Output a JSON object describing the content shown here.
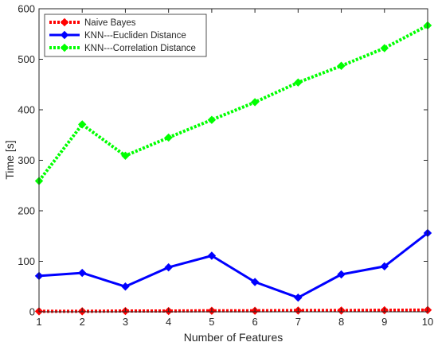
{
  "chart_data": {
    "type": "line",
    "title": "",
    "xlabel": "Number of Features",
    "ylabel": "Time [s]",
    "x": [
      1,
      2,
      3,
      4,
      5,
      6,
      7,
      8,
      9,
      10
    ],
    "xlim": [
      1,
      10
    ],
    "ylim": [
      0,
      600
    ],
    "xticks": [
      1,
      2,
      3,
      4,
      5,
      6,
      7,
      8,
      9,
      10
    ],
    "yticks": [
      0,
      100,
      200,
      300,
      400,
      500,
      600
    ],
    "grid": false,
    "legend_position": "top-left",
    "series": [
      {
        "name": "Naive Bayes",
        "color": "#ff0000",
        "line_style": "dotted",
        "marker": "diamond",
        "values": [
          1,
          1,
          1.5,
          1.5,
          2,
          2,
          2.5,
          2.5,
          3,
          3.5
        ]
      },
      {
        "name": "KNN---Eucliden Distance",
        "color": "#0000ff",
        "line_style": "solid",
        "marker": "diamond",
        "values": [
          71,
          77,
          50,
          88,
          111,
          59,
          28,
          74,
          90,
          156
        ]
      },
      {
        "name": "KNN---Correlation Distance",
        "color": "#00ff00",
        "line_style": "dotted",
        "marker": "diamond",
        "values": [
          259,
          371,
          309,
          345,
          380,
          415,
          454,
          487,
          522,
          567
        ]
      }
    ]
  }
}
